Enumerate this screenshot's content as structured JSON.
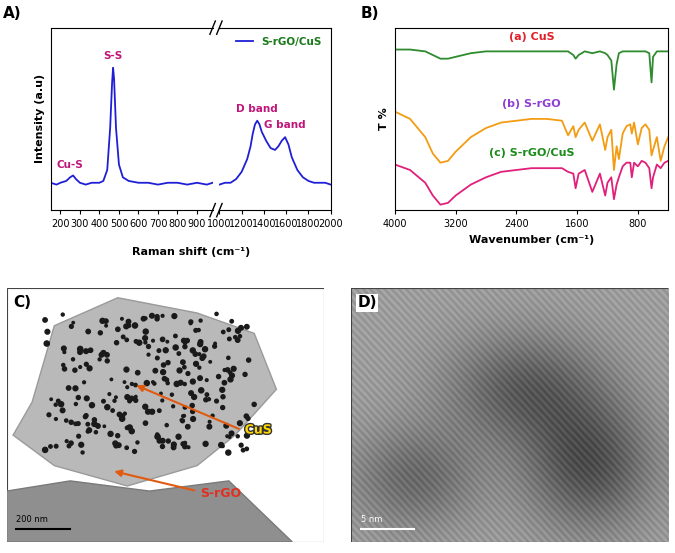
{
  "chart_data": [
    {
      "type": "line",
      "panel": "A)",
      "y_label": "Intensity (a.u)",
      "x_label": "Raman shift (cm⁻¹)",
      "xlim": [
        150,
        980
      ],
      "xticks": [
        200,
        300,
        400,
        500,
        600,
        700,
        800,
        900
      ],
      "ylim": [
        0,
        100
      ],
      "tick_labels": "x",
      "x": [
        150,
        180,
        200,
        230,
        250,
        265,
        280,
        300,
        330,
        360,
        400,
        420,
        440,
        455,
        465,
        470,
        475,
        485,
        500,
        520,
        550,
        600,
        650,
        700,
        750,
        800,
        850,
        900,
        950,
        980
      ],
      "series": [
        {
          "color": "#1f1fd6",
          "values": [
            15,
            14,
            15,
            16,
            18,
            19,
            17,
            15,
            14,
            15,
            15,
            16,
            22,
            45,
            70,
            78,
            72,
            45,
            25,
            18,
            16,
            15,
            15,
            14,
            15,
            15,
            14,
            15,
            14,
            15
          ]
        }
      ],
      "annotations": [
        {
          "text": "Cu-S",
          "x": 250
        },
        {
          "text": "S-S",
          "x": 470
        }
      ]
    },
    {
      "type": "line",
      "xlim": [
        1000,
        2000
      ],
      "xticks": [
        1000,
        1200,
        1400,
        1600,
        1800,
        2000
      ],
      "ylim": [
        0,
        100
      ],
      "tick_labels": "x",
      "legend": "upper right",
      "x": [
        1000,
        1050,
        1100,
        1150,
        1200,
        1250,
        1280,
        1300,
        1320,
        1340,
        1360,
        1380,
        1420,
        1460,
        1500,
        1530,
        1560,
        1590,
        1620,
        1650,
        1700,
        1750,
        1800,
        1850,
        1900,
        1950,
        2000
      ],
      "series": [
        {
          "name": "S-rGO/CuS",
          "color": "#1f1fd6",
          "values": [
            14,
            15,
            15,
            17,
            21,
            28,
            35,
            42,
            47,
            49,
            47,
            43,
            38,
            34,
            33,
            35,
            38,
            40,
            36,
            29,
            22,
            18,
            16,
            15,
            15,
            15,
            14
          ]
        }
      ],
      "annotations": [
        {
          "text": "D band",
          "x": 1340
        },
        {
          "text": "G band",
          "x": 1590
        }
      ]
    },
    {
      "type": "line",
      "panel": "B)",
      "y_label": "T %",
      "x_label": "Wavenumber (cm⁻¹)",
      "xlim": [
        4000,
        400
      ],
      "xticks": [
        4000,
        3200,
        2400,
        1600,
        800
      ],
      "ylim": [
        0,
        100
      ],
      "tick_labels": "x",
      "x": [
        4000,
        3800,
        3600,
        3500,
        3400,
        3300,
        3200,
        3000,
        2800,
        2600,
        2400,
        2200,
        2000,
        1800,
        1720,
        1650,
        1620,
        1580,
        1500,
        1400,
        1300,
        1230,
        1200,
        1150,
        1115,
        1080,
        1050,
        1000,
        950,
        900,
        880,
        850,
        800,
        750,
        700,
        650,
        620,
        600,
        550,
        500,
        450,
        400
      ],
      "series": [
        {
          "name": "(a) CuS",
          "color": "#2e8b2e",
          "values": [
            88,
            88,
            87,
            85,
            83,
            83,
            84,
            86,
            87,
            87,
            87,
            87,
            87,
            87,
            87,
            85,
            83,
            85,
            87,
            86,
            87,
            86,
            85,
            82,
            66,
            80,
            86,
            87,
            87,
            87,
            87,
            87,
            87,
            87,
            87,
            86,
            70,
            84,
            87,
            87,
            87,
            87
          ]
        },
        {
          "name": "(b) S-rGO",
          "color": "#f39c12",
          "values": [
            54,
            50,
            40,
            31,
            26,
            27,
            32,
            40,
            45,
            48,
            49,
            50,
            50,
            49,
            41,
            46,
            40,
            44,
            48,
            38,
            47,
            33,
            40,
            44,
            22,
            35,
            28,
            42,
            46,
            47,
            42,
            48,
            36,
            45,
            47,
            44,
            30,
            33,
            40,
            27,
            35,
            40
          ]
        },
        {
          "name": "(c) S-rGO/CuS",
          "color": "#e0207a",
          "values": [
            25,
            22,
            15,
            8,
            3,
            4,
            8,
            14,
            18,
            21,
            22,
            23,
            23,
            23,
            21,
            20,
            12,
            20,
            22,
            10,
            20,
            8,
            15,
            18,
            6,
            14,
            18,
            24,
            26,
            26,
            18,
            26,
            24,
            27,
            26,
            23,
            12,
            18,
            25,
            23,
            26,
            27
          ]
        }
      ]
    }
  ],
  "images": [
    {
      "panel": "C)",
      "labels": [
        "CuS",
        "S-rGO"
      ],
      "scale_bar": "200 nm"
    },
    {
      "panel": "D)",
      "scale_bar": "5 nm"
    }
  ]
}
